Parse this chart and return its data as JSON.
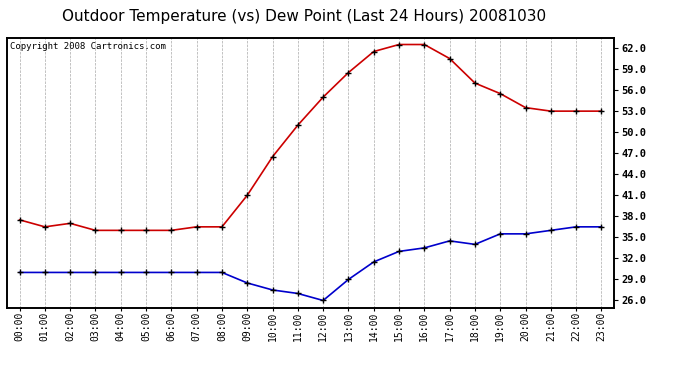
{
  "title": "Outdoor Temperature (vs) Dew Point (Last 24 Hours) 20081030",
  "copyright": "Copyright 2008 Cartronics.com",
  "hours": [
    "00:00",
    "01:00",
    "02:00",
    "03:00",
    "04:00",
    "05:00",
    "06:00",
    "07:00",
    "08:00",
    "09:00",
    "10:00",
    "11:00",
    "12:00",
    "13:00",
    "14:00",
    "15:00",
    "16:00",
    "17:00",
    "18:00",
    "19:00",
    "20:00",
    "21:00",
    "22:00",
    "23:00"
  ],
  "temp": [
    37.5,
    36.5,
    37.0,
    36.0,
    36.0,
    36.0,
    36.0,
    36.5,
    36.5,
    41.0,
    46.5,
    51.0,
    55.0,
    58.5,
    61.5,
    62.5,
    62.5,
    60.5,
    57.0,
    55.5,
    53.5,
    53.0,
    53.0,
    53.0
  ],
  "dew": [
    30.0,
    30.0,
    30.0,
    30.0,
    30.0,
    30.0,
    30.0,
    30.0,
    30.0,
    28.5,
    27.5,
    27.0,
    26.0,
    29.0,
    31.5,
    33.0,
    33.5,
    34.5,
    34.0,
    35.5,
    35.5,
    36.0,
    36.5,
    36.5
  ],
  "temp_color": "#cc0000",
  "dew_color": "#0000cc",
  "bg_color": "#ffffff",
  "plot_bg": "#ffffff",
  "grid_color": "#aaaaaa",
  "ylim": [
    25.0,
    63.5
  ],
  "yticks": [
    26.0,
    29.0,
    32.0,
    35.0,
    38.0,
    41.0,
    44.0,
    47.0,
    50.0,
    53.0,
    56.0,
    59.0,
    62.0
  ],
  "title_fontsize": 11,
  "copyright_fontsize": 6.5,
  "tick_fontsize": 7,
  "ytick_fontsize": 7.5,
  "marker": "+"
}
